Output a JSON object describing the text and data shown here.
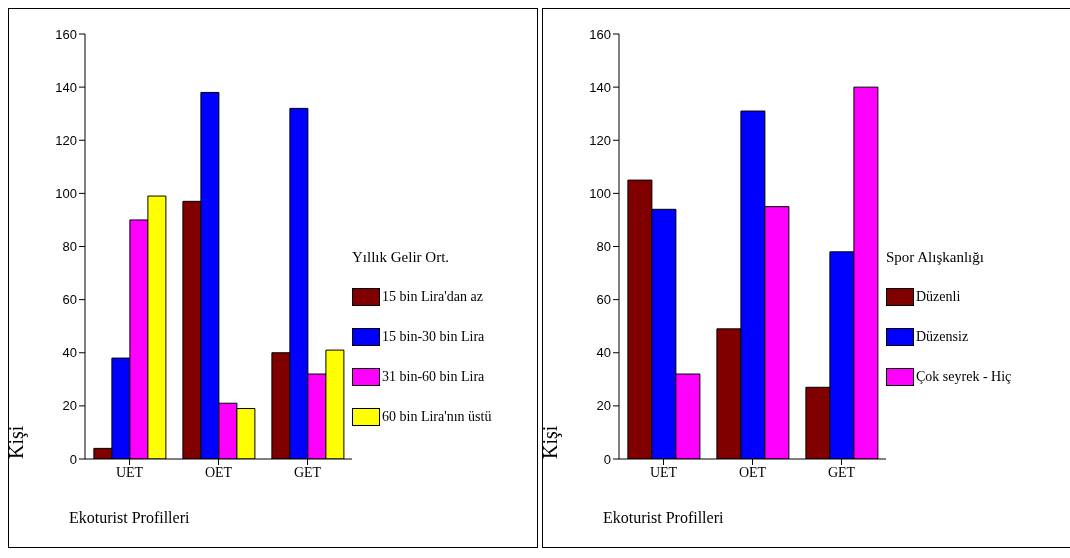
{
  "chart_data": [
    {
      "type": "bar",
      "categories": [
        "UET",
        "OET",
        "GET"
      ],
      "xlabel": "Ekoturist Profilleri",
      "ylabel": "Kişi",
      "legend_title": "Yıllık Gelir Ort.",
      "legend": "right",
      "grid": false,
      "ylim": [
        0,
        160
      ],
      "yticks": [
        0,
        20,
        40,
        60,
        80,
        100,
        120,
        140,
        160
      ],
      "series": [
        {
          "name": "15 bin Lira'dan az",
          "color": "#800000",
          "values": [
            4,
            97,
            40
          ]
        },
        {
          "name": "15 bin-30 bin Lira",
          "color": "#0000ff",
          "values": [
            38,
            138,
            132
          ]
        },
        {
          "name": "31 bin-60 bin Lira",
          "color": "#ff00ff",
          "values": [
            90,
            21,
            32
          ]
        },
        {
          "name": "60 bin Lira'nın üstü",
          "color": "#ffff00",
          "values": [
            99,
            19,
            41
          ]
        }
      ]
    },
    {
      "type": "bar",
      "categories": [
        "UET",
        "OET",
        "GET"
      ],
      "xlabel": "Ekoturist Profilleri",
      "ylabel": "Kişi",
      "legend_title": "Spor Alışkanlığı",
      "legend": "right",
      "grid": false,
      "ylim": [
        0,
        160
      ],
      "yticks": [
        0,
        20,
        40,
        60,
        80,
        100,
        120,
        140,
        160
      ],
      "series": [
        {
          "name": "Düzenli",
          "color": "#800000",
          "values": [
            105,
            49,
            27
          ]
        },
        {
          "name": "Düzensiz",
          "color": "#0000ff",
          "values": [
            94,
            131,
            78
          ]
        },
        {
          "name": "Çok seyrek - Hiç",
          "color": "#ff00ff",
          "values": [
            32,
            95,
            140
          ]
        }
      ]
    }
  ]
}
